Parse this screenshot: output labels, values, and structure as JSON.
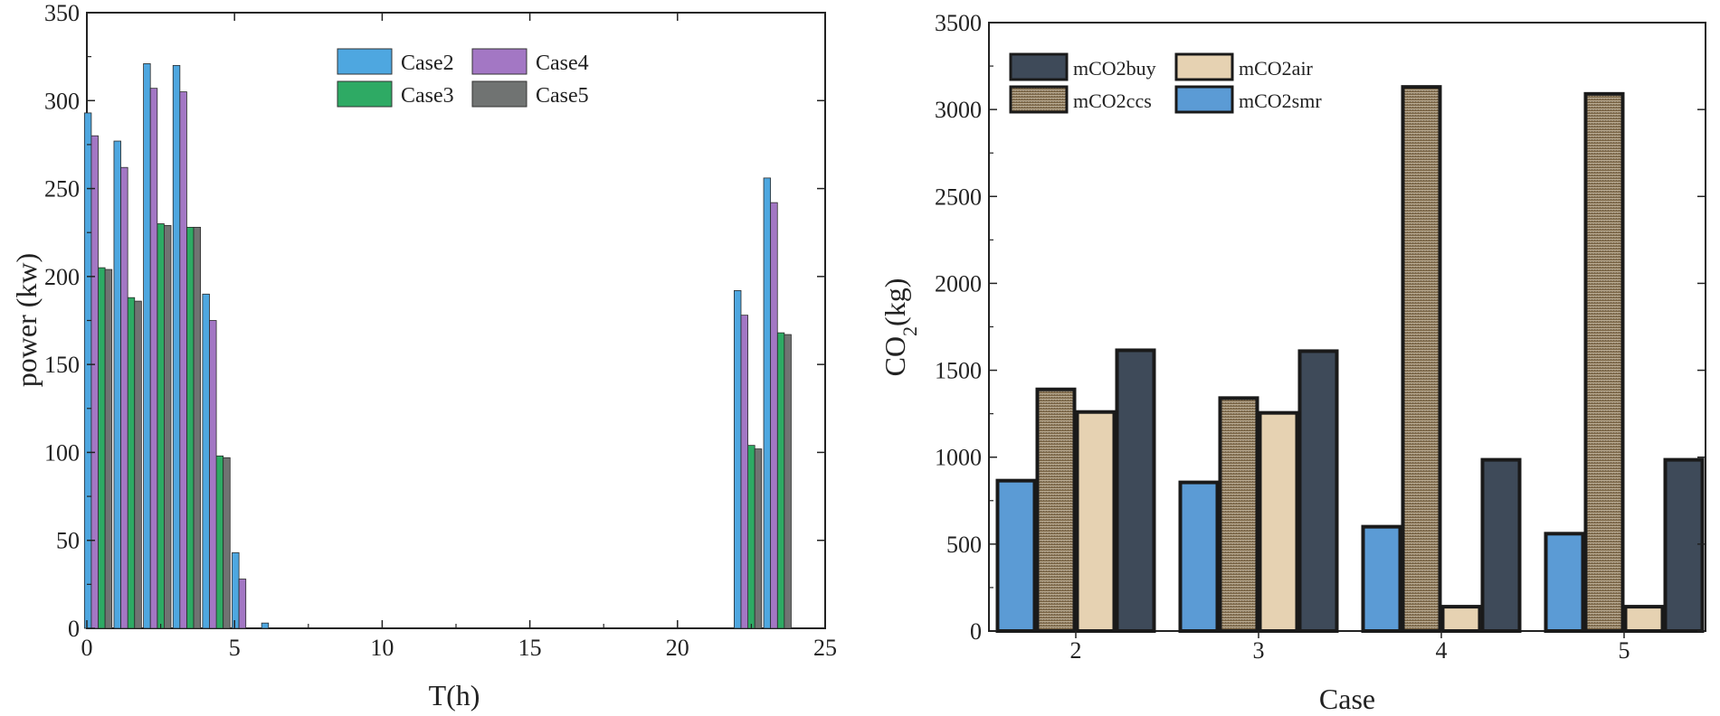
{
  "colors": {
    "case2": "#4ea7e0",
    "case3": "#2eaa64",
    "case4": "#a377c4",
    "case5": "#707372",
    "mCO2buy": "#3e4a59",
    "mCO2air": "#e6d2b2",
    "mCO2ccs_top": "#c9bca6",
    "mCO2ccs_bottom": "#6b5331",
    "mCO2smr": "#5b9bd5"
  },
  "chart_data": [
    {
      "type": "bar",
      "ylabel": "power (kw)",
      "xlabel": "T(h)",
      "xlim": [
        0,
        25
      ],
      "ylim": [
        0,
        350
      ],
      "xticks": [
        0,
        5,
        10,
        15,
        20,
        25
      ],
      "yticks": [
        0,
        50,
        100,
        150,
        200,
        250,
        300,
        350
      ],
      "legend_position": "top-center",
      "series": [
        {
          "name": "Case2",
          "color_key": "case2",
          "x": [
            1,
            2,
            3,
            4,
            5,
            6,
            7,
            23,
            24
          ],
          "values": [
            293,
            277,
            321,
            320,
            190,
            43,
            3,
            192,
            256
          ]
        },
        {
          "name": "Case3",
          "color_key": "case3",
          "x": [
            1,
            2,
            3,
            4,
            5,
            6,
            7,
            23,
            24
          ],
          "values": [
            205,
            188,
            230,
            228,
            98,
            0,
            0,
            104,
            168
          ]
        },
        {
          "name": "Case4",
          "color_key": "case4",
          "x": [
            1,
            2,
            3,
            4,
            5,
            6,
            7,
            23,
            24
          ],
          "values": [
            280,
            262,
            307,
            305,
            175,
            28,
            0,
            178,
            242
          ]
        },
        {
          "name": "Case5",
          "color_key": "case5",
          "x": [
            1,
            2,
            3,
            4,
            5,
            6,
            7,
            23,
            24
          ],
          "values": [
            204,
            186,
            229,
            228,
            97,
            0,
            0,
            102,
            167
          ]
        }
      ]
    },
    {
      "type": "bar",
      "ylabel_main": "CO",
      "ylabel_sub": "2",
      "ylabel_tail": "(kg)",
      "xlabel": "Case",
      "categories": [
        "2",
        "3",
        "4",
        "5"
      ],
      "ylim": [
        0,
        3500
      ],
      "yticks": [
        0,
        500,
        1000,
        1500,
        2000,
        2500,
        3000,
        3500
      ],
      "legend_position": "top-left",
      "legend_order": [
        "mCO2buy",
        "mCO2air",
        "mCO2ccs",
        "mCO2smr"
      ],
      "series": [
        {
          "name": "mCO2smr",
          "color_key": "mCO2smr",
          "values": [
            865,
            855,
            600,
            560
          ]
        },
        {
          "name": "mCO2ccs",
          "color_key": "mCO2ccs",
          "values": [
            1390,
            1340,
            3130,
            3090
          ]
        },
        {
          "name": "mCO2air",
          "color_key": "mCO2air",
          "values": [
            1260,
            1255,
            140,
            140
          ]
        },
        {
          "name": "mCO2buy",
          "color_key": "mCO2buy",
          "values": [
            1615,
            1610,
            985,
            985
          ]
        }
      ]
    }
  ]
}
